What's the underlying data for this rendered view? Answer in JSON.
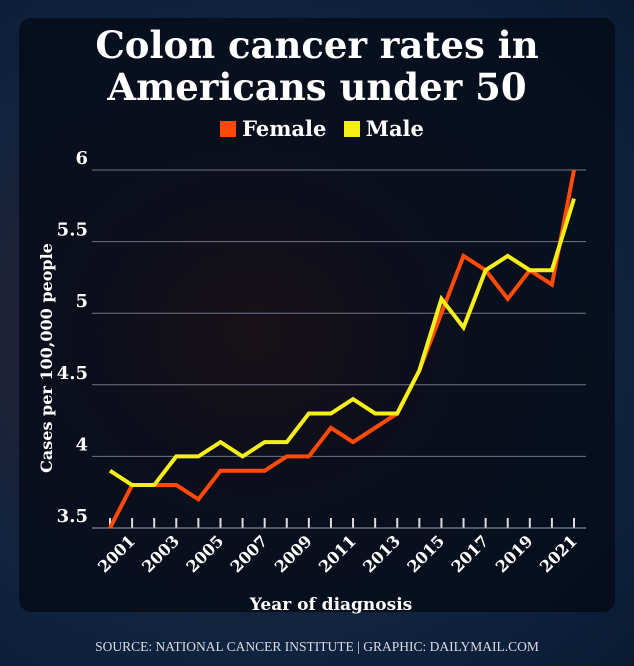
{
  "title": "Colon cancer rates in Americans under 50",
  "source": "SOURCE: NATIONAL CANCER INSTITUTE  |  GRAPHIC: DAILYMAIL.COM",
  "chart_data": {
    "type": "line",
    "title": "Colon cancer rates in Americans under 50",
    "xlabel": "Year of diagnosis",
    "ylabel": "Cases per 100,000 people",
    "ylim": [
      3.5,
      6
    ],
    "yticks": [
      3.5,
      4,
      4.5,
      5,
      5.5,
      6
    ],
    "ytick_labels": [
      "3.5",
      "4",
      "4.5",
      "5",
      "5.5",
      "6"
    ],
    "x": [
      2000,
      2001,
      2002,
      2003,
      2004,
      2005,
      2006,
      2007,
      2008,
      2009,
      2010,
      2011,
      2012,
      2013,
      2014,
      2015,
      2016,
      2017,
      2018,
      2019,
      2020,
      2021
    ],
    "xtick_labels": [
      "2001",
      "2003",
      "2005",
      "2007",
      "2009",
      "2011",
      "2013",
      "2015",
      "2017",
      "2019",
      "2021"
    ],
    "grid": true,
    "legend_placement": "top-center",
    "series": [
      {
        "name": "Female",
        "color": "#ff4a0a",
        "values": [
          3.5,
          3.8,
          3.8,
          3.8,
          3.7,
          3.9,
          3.9,
          3.9,
          4.0,
          4.0,
          4.2,
          4.1,
          4.2,
          4.3,
          4.6,
          5.0,
          5.4,
          5.3,
          5.1,
          5.3,
          5.2,
          6.0
        ]
      },
      {
        "name": "Male",
        "color": "#f5f01a",
        "values": [
          3.9,
          3.8,
          3.8,
          4.0,
          4.0,
          4.1,
          4.0,
          4.1,
          4.1,
          4.3,
          4.3,
          4.4,
          4.3,
          4.3,
          4.6,
          5.1,
          4.9,
          5.3,
          5.4,
          5.3,
          5.3,
          5.8
        ]
      }
    ]
  }
}
